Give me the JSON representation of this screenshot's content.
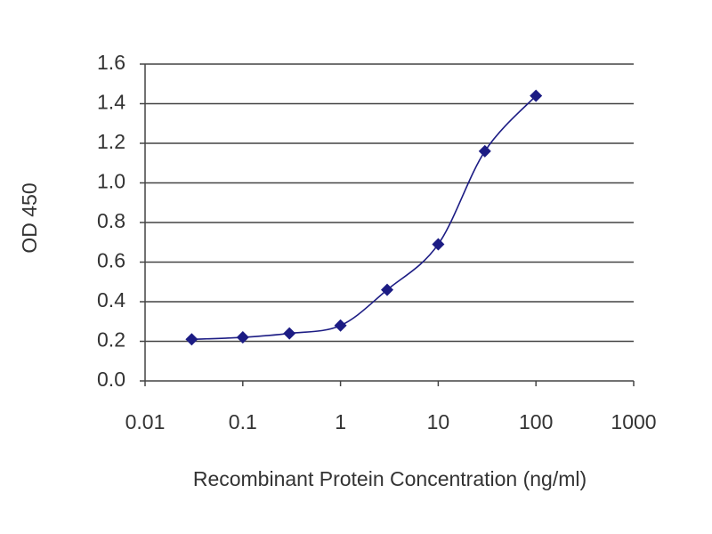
{
  "chart_data": {
    "type": "line",
    "x_label": "Recombinant Protein Concentration (ng/ml)",
    "y_label": "OD 450",
    "x": [
      0.03,
      0.1,
      0.3,
      1,
      3,
      10,
      30,
      100
    ],
    "values": [
      0.21,
      0.22,
      0.24,
      0.28,
      0.46,
      0.69,
      1.16,
      1.44
    ],
    "color": "#1c1c84",
    "x_scale": "log",
    "xlim": [
      0.01,
      1000
    ],
    "xticks": [
      0.01,
      0.1,
      1,
      10,
      100,
      1000
    ],
    "ylim": [
      0,
      1.6
    ],
    "yticks": [
      {
        "value": 0,
        "label": "0.0"
      },
      0.2,
      0.4,
      0.6,
      0.8,
      {
        "value": 1,
        "label": "1.0"
      },
      1.2,
      1.4,
      1.6
    ],
    "grid": true
  }
}
